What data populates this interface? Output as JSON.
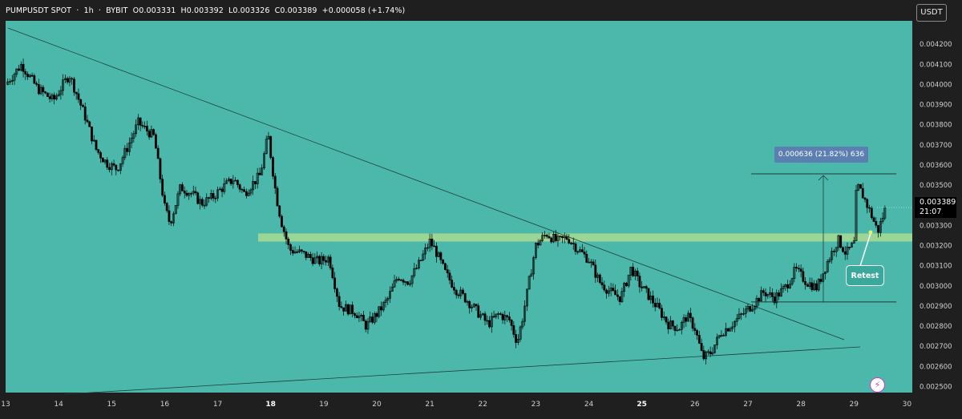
{
  "header": {
    "symbol": "PUMPUSDT SPOT",
    "sep1": "·",
    "interval": "1h",
    "sep2": "·",
    "exchange": "BYBIT",
    "open": "O0.003331",
    "high": "H0.003392",
    "low": "L0.003326",
    "close": "C0.003389",
    "change": "+0.000058 (+1.74%)"
  },
  "currency_button": "USDT",
  "price_tag": {
    "price": "0.003389",
    "countdown": "21:07"
  },
  "measure_label": "0.000636 (21.82%) 636",
  "retest_label": "Retest",
  "bolt_icon": "lightning-icon",
  "colors": {
    "background": "#4cb8ab",
    "candle": "#000000",
    "zone": "#b6e090",
    "axis_bg": "#1f1f1f",
    "axis_text": "#d0d0d0",
    "measure_bg": "#5a7fb0"
  },
  "chart_data": {
    "type": "candlestick",
    "title": "PUMPUSDT SPOT · 1h · BYBIT",
    "x_ticks": [
      "13",
      "14",
      "15",
      "16",
      "17",
      "18",
      "19",
      "20",
      "21",
      "22",
      "23",
      "24",
      "25",
      "26",
      "27",
      "28",
      "29",
      "30"
    ],
    "y_ticks": [
      "0.004200",
      "0.004100",
      "0.004000",
      "0.003900",
      "0.003800",
      "0.003700",
      "0.003600",
      "0.003500",
      "0.003400",
      "0.003300",
      "0.003200",
      "0.003100",
      "0.003000",
      "0.002900",
      "0.002800",
      "0.002700",
      "0.002600",
      "0.002500"
    ],
    "ylim": [
      0.00247,
      0.0043
    ],
    "xlim": [
      13.0,
      30.1
    ],
    "grid": false,
    "close_series": {
      "x": [
        13.0,
        13.3,
        13.6,
        13.9,
        14.2,
        14.5,
        14.7,
        14.9,
        15.1,
        15.3,
        15.5,
        15.8,
        16.0,
        16.1,
        16.3,
        16.5,
        16.7,
        16.9,
        17.1,
        17.3,
        17.5,
        17.8,
        17.95,
        18.1,
        18.2,
        18.35,
        18.6,
        18.9,
        19.1,
        19.3,
        19.6,
        19.8,
        20.0,
        20.2,
        20.4,
        20.6,
        20.8,
        21.0,
        21.1,
        21.3,
        21.5,
        21.7,
        21.9,
        22.1,
        22.3,
        22.5,
        22.65,
        22.75,
        22.9,
        23.0,
        23.2,
        23.4,
        23.6,
        23.8,
        24.0,
        24.2,
        24.4,
        24.6,
        24.8,
        24.95,
        25.1,
        25.3,
        25.5,
        25.7,
        25.85,
        26.0,
        26.15,
        26.3,
        26.5,
        26.7,
        26.9,
        27.1,
        27.3,
        27.5,
        27.7,
        27.9,
        28.1,
        28.3,
        28.5,
        28.7,
        28.85,
        29.0,
        29.05,
        29.15,
        29.3,
        29.45,
        29.5,
        29.6
      ],
      "y": [
        0.004,
        0.0041,
        0.00398,
        0.00392,
        0.00405,
        0.00384,
        0.00368,
        0.00361,
        0.00358,
        0.00369,
        0.00381,
        0.00374,
        0.00339,
        0.00331,
        0.00349,
        0.00346,
        0.00341,
        0.00344,
        0.00349,
        0.00353,
        0.00346,
        0.00355,
        0.00375,
        0.00345,
        0.00332,
        0.00318,
        0.00316,
        0.00312,
        0.00314,
        0.0029,
        0.00287,
        0.0028,
        0.00286,
        0.00293,
        0.00305,
        0.00302,
        0.00311,
        0.00322,
        0.00318,
        0.00306,
        0.00298,
        0.00293,
        0.00287,
        0.00281,
        0.00286,
        0.00283,
        0.00272,
        0.00284,
        0.00306,
        0.0032,
        0.00326,
        0.00322,
        0.00324,
        0.00318,
        0.00313,
        0.00302,
        0.00297,
        0.00294,
        0.00309,
        0.00301,
        0.00296,
        0.00289,
        0.00281,
        0.00279,
        0.00285,
        0.00279,
        0.00264,
        0.00267,
        0.00277,
        0.00281,
        0.00286,
        0.00291,
        0.00297,
        0.00294,
        0.00299,
        0.00308,
        0.00302,
        0.00299,
        0.00312,
        0.00323,
        0.00316,
        0.00321,
        0.0035,
        0.00346,
        0.00337,
        0.00327,
        0.00331,
        0.00339
      ]
    },
    "support_zone": [
      0.00322,
      0.00326
    ],
    "measure": {
      "price_from": 0.00292,
      "price_to": 0.003556,
      "change": "0.000636 (21.82%) 636"
    }
  }
}
